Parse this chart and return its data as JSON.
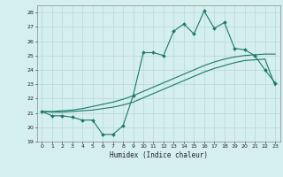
{
  "x": [
    0,
    1,
    2,
    3,
    4,
    5,
    6,
    7,
    8,
    9,
    10,
    11,
    12,
    13,
    14,
    15,
    16,
    17,
    18,
    19,
    20,
    21,
    22,
    23
  ],
  "y_main": [
    21.1,
    20.8,
    20.8,
    20.7,
    20.5,
    20.5,
    19.5,
    19.5,
    20.1,
    22.2,
    25.2,
    25.2,
    25.0,
    26.7,
    27.2,
    26.5,
    28.1,
    26.9,
    27.3,
    25.5,
    25.4,
    25.0,
    24.0,
    23.1
  ],
  "y_trend1": [
    21.1,
    21.1,
    21.15,
    21.2,
    21.3,
    21.45,
    21.6,
    21.75,
    21.95,
    22.2,
    22.5,
    22.8,
    23.1,
    23.4,
    23.7,
    24.0,
    24.3,
    24.55,
    24.75,
    24.9,
    25.0,
    25.05,
    25.1,
    25.1
  ],
  "y_trend2": [
    21.1,
    21.05,
    21.05,
    21.1,
    21.15,
    21.2,
    21.3,
    21.4,
    21.55,
    21.75,
    22.05,
    22.35,
    22.65,
    22.95,
    23.25,
    23.55,
    23.85,
    24.1,
    24.3,
    24.5,
    24.65,
    24.7,
    24.75,
    22.9
  ],
  "bg_color": "#d5eeee",
  "grid_color": "#b8d8d8",
  "line_color": "#1a7a6a",
  "xlabel": "Humidex (Indice chaleur)",
  "xlim": [
    -0.5,
    23.5
  ],
  "ylim": [
    19,
    28.5
  ],
  "yticks": [
    19,
    20,
    21,
    22,
    23,
    24,
    25,
    26,
    27,
    28
  ],
  "xticks": [
    0,
    1,
    2,
    3,
    4,
    5,
    6,
    7,
    8,
    9,
    10,
    11,
    12,
    13,
    14,
    15,
    16,
    17,
    18,
    19,
    20,
    21,
    22,
    23
  ]
}
